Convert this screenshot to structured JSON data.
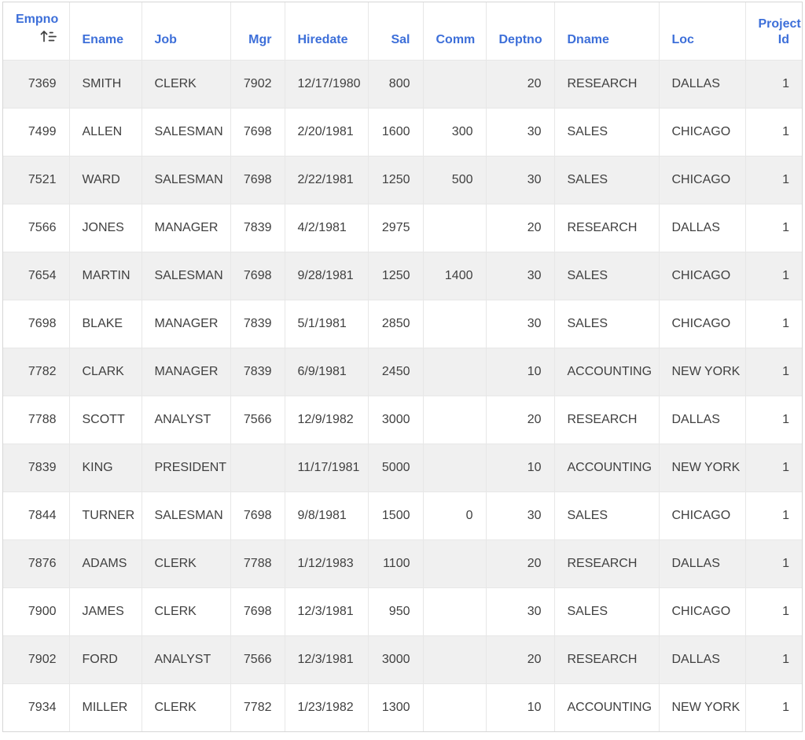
{
  "table": {
    "sorted_column": "empno",
    "sort_direction": "ascending",
    "columns": [
      {
        "key": "empno",
        "label": "Empno",
        "align": "right",
        "sorted": "asc"
      },
      {
        "key": "ename",
        "label": "Ename",
        "align": "left"
      },
      {
        "key": "job",
        "label": "Job",
        "align": "left"
      },
      {
        "key": "mgr",
        "label": "Mgr",
        "align": "right"
      },
      {
        "key": "hiredate",
        "label": "Hiredate",
        "align": "left"
      },
      {
        "key": "sal",
        "label": "Sal",
        "align": "right"
      },
      {
        "key": "comm",
        "label": "Comm",
        "align": "right"
      },
      {
        "key": "deptno",
        "label": "Deptno",
        "align": "right"
      },
      {
        "key": "dname",
        "label": "Dname",
        "align": "left"
      },
      {
        "key": "loc",
        "label": "Loc",
        "align": "left"
      },
      {
        "key": "project_id",
        "label": "Project Id",
        "align": "right"
      }
    ],
    "rows": [
      [
        "7369",
        "SMITH",
        "CLERK",
        "7902",
        "12/17/1980",
        "800",
        "",
        "20",
        "RESEARCH",
        "DALLAS",
        "1"
      ],
      [
        "7499",
        "ALLEN",
        "SALESMAN",
        "7698",
        "2/20/1981",
        "1600",
        "300",
        "30",
        "SALES",
        "CHICAGO",
        "1"
      ],
      [
        "7521",
        "WARD",
        "SALESMAN",
        "7698",
        "2/22/1981",
        "1250",
        "500",
        "30",
        "SALES",
        "CHICAGO",
        "1"
      ],
      [
        "7566",
        "JONES",
        "MANAGER",
        "7839",
        "4/2/1981",
        "2975",
        "",
        "20",
        "RESEARCH",
        "DALLAS",
        "1"
      ],
      [
        "7654",
        "MARTIN",
        "SALESMAN",
        "7698",
        "9/28/1981",
        "1250",
        "1400",
        "30",
        "SALES",
        "CHICAGO",
        "1"
      ],
      [
        "7698",
        "BLAKE",
        "MANAGER",
        "7839",
        "5/1/1981",
        "2850",
        "",
        "30",
        "SALES",
        "CHICAGO",
        "1"
      ],
      [
        "7782",
        "CLARK",
        "MANAGER",
        "7839",
        "6/9/1981",
        "2450",
        "",
        "10",
        "ACCOUNTING",
        "NEW YORK",
        "1"
      ],
      [
        "7788",
        "SCOTT",
        "ANALYST",
        "7566",
        "12/9/1982",
        "3000",
        "",
        "20",
        "RESEARCH",
        "DALLAS",
        "1"
      ],
      [
        "7839",
        "KING",
        "PRESIDENT",
        "",
        "11/17/1981",
        "5000",
        "",
        "10",
        "ACCOUNTING",
        "NEW YORK",
        "1"
      ],
      [
        "7844",
        "TURNER",
        "SALESMAN",
        "7698",
        "9/8/1981",
        "1500",
        "0",
        "30",
        "SALES",
        "CHICAGO",
        "1"
      ],
      [
        "7876",
        "ADAMS",
        "CLERK",
        "7788",
        "1/12/1983",
        "1100",
        "",
        "20",
        "RESEARCH",
        "DALLAS",
        "1"
      ],
      [
        "7900",
        "JAMES",
        "CLERK",
        "7698",
        "12/3/1981",
        "950",
        "",
        "30",
        "SALES",
        "CHICAGO",
        "1"
      ],
      [
        "7902",
        "FORD",
        "ANALYST",
        "7566",
        "12/3/1981",
        "3000",
        "",
        "20",
        "RESEARCH",
        "DALLAS",
        "1"
      ],
      [
        "7934",
        "MILLER",
        "CLERK",
        "7782",
        "1/23/1982",
        "1300",
        "",
        "10",
        "ACCOUNTING",
        "NEW YORK",
        "1"
      ]
    ],
    "icons": {
      "sort_ascending": "sort-ascending-icon"
    },
    "colors": {
      "header_text": "#3D6FD9",
      "cell_text": "#404040",
      "stripe_background": "#F0F0F0",
      "row_background": "#FFFFFF",
      "cell_border": "#E7E7E7",
      "outer_border": "#D6D6D6",
      "sort_icon": "#3F3F3F"
    }
  }
}
